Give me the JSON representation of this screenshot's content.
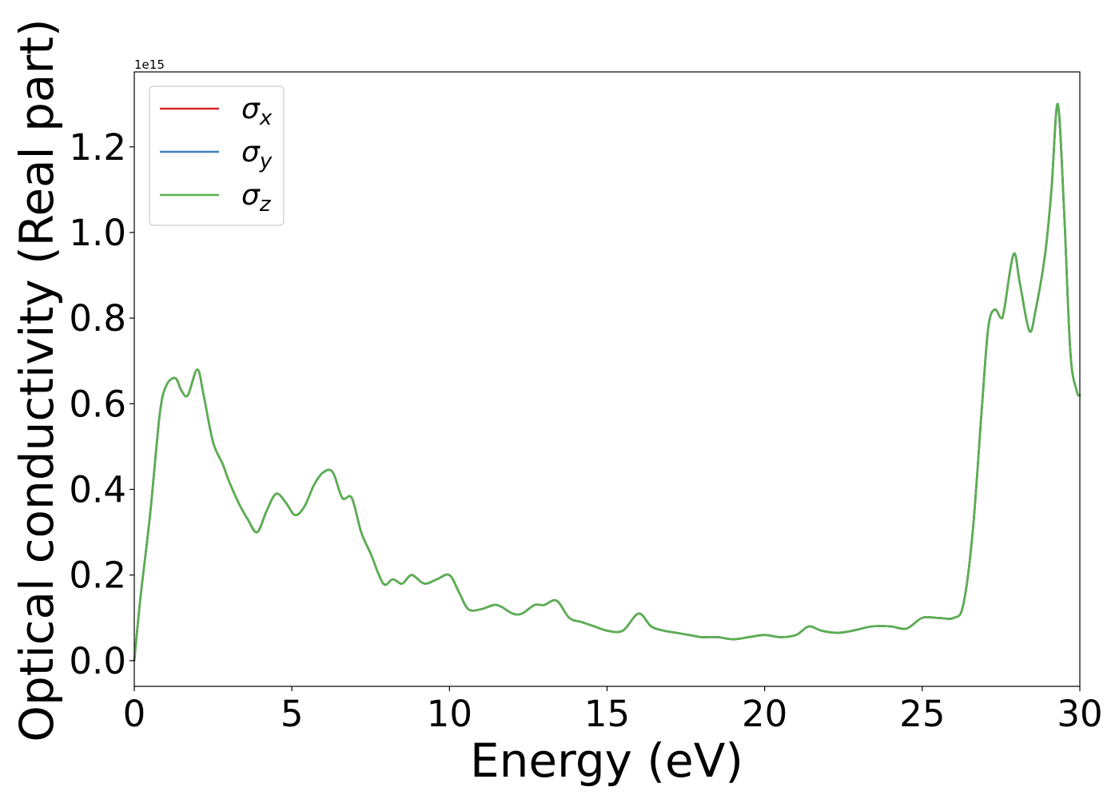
{
  "chart_data": {
    "type": "line",
    "xlabel": "Energy (eV)",
    "ylabel": "Optical conductivity (Real part)",
    "y_offset_label": "1e15",
    "y_scale_multiplier": 1000000000000000.0,
    "xlim": [
      0,
      30
    ],
    "ylim": [
      -0.06,
      1.375
    ],
    "x_ticks": [
      0,
      5,
      10,
      15,
      20,
      25,
      30
    ],
    "x_tick_labels": [
      "0",
      "5",
      "10",
      "15",
      "20",
      "25",
      "30"
    ],
    "y_ticks": [
      0.0,
      0.2,
      0.4,
      0.6,
      0.8,
      1.0,
      1.2
    ],
    "y_tick_labels": [
      "0.0",
      "0.2",
      "0.4",
      "0.6",
      "0.8",
      "1.0",
      "1.2"
    ],
    "grid": false,
    "legend_position": "top-left",
    "x": [
      0.0,
      0.2,
      0.5,
      0.8,
      1.0,
      1.3,
      1.5,
      1.7,
      2.0,
      2.2,
      2.5,
      2.8,
      3.0,
      3.3,
      3.6,
      3.9,
      4.2,
      4.5,
      4.8,
      5.1,
      5.4,
      5.7,
      6.0,
      6.3,
      6.6,
      6.9,
      7.2,
      7.5,
      7.9,
      8.2,
      8.5,
      8.8,
      9.2,
      9.6,
      10.0,
      10.3,
      10.6,
      11.0,
      11.5,
      12.0,
      12.3,
      12.7,
      13.0,
      13.4,
      13.8,
      14.2,
      14.6,
      15.0,
      15.5,
      16.0,
      16.4,
      16.8,
      17.2,
      17.6,
      18.0,
      18.5,
      19.0,
      19.5,
      20.0,
      20.5,
      21.0,
      21.4,
      21.8,
      22.3,
      22.8,
      23.4,
      24.0,
      24.5,
      25.0,
      25.5,
      26.0,
      26.3,
      26.6,
      26.9,
      27.1,
      27.3,
      27.5,
      27.6,
      27.9,
      28.1,
      28.4,
      28.6,
      28.9,
      29.1,
      29.3,
      29.5,
      29.7,
      29.9,
      30.0
    ],
    "series": [
      {
        "name": "σx",
        "color": "#d62728",
        "values": [
          0.0,
          0.15,
          0.34,
          0.57,
          0.64,
          0.66,
          0.63,
          0.62,
          0.68,
          0.62,
          0.51,
          0.46,
          0.42,
          0.37,
          0.33,
          0.3,
          0.35,
          0.39,
          0.37,
          0.34,
          0.36,
          0.41,
          0.44,
          0.44,
          0.38,
          0.38,
          0.3,
          0.25,
          0.18,
          0.19,
          0.18,
          0.2,
          0.18,
          0.19,
          0.2,
          0.16,
          0.12,
          0.12,
          0.13,
          0.11,
          0.11,
          0.13,
          0.13,
          0.14,
          0.1,
          0.09,
          0.08,
          0.07,
          0.07,
          0.11,
          0.08,
          0.07,
          0.065,
          0.06,
          0.055,
          0.055,
          0.05,
          0.055,
          0.06,
          0.055,
          0.06,
          0.08,
          0.07,
          0.065,
          0.07,
          0.08,
          0.08,
          0.075,
          0.1,
          0.1,
          0.1,
          0.13,
          0.3,
          0.6,
          0.78,
          0.82,
          0.8,
          0.82,
          0.95,
          0.88,
          0.77,
          0.82,
          0.95,
          1.1,
          1.3,
          1.05,
          0.72,
          0.63,
          0.62
        ]
      },
      {
        "name": "σy",
        "color": "#3a7fb8",
        "values": [
          0.0,
          0.15,
          0.34,
          0.57,
          0.64,
          0.66,
          0.63,
          0.62,
          0.68,
          0.62,
          0.51,
          0.46,
          0.42,
          0.37,
          0.33,
          0.3,
          0.35,
          0.39,
          0.37,
          0.34,
          0.36,
          0.41,
          0.44,
          0.44,
          0.38,
          0.38,
          0.3,
          0.25,
          0.18,
          0.19,
          0.18,
          0.2,
          0.18,
          0.19,
          0.2,
          0.16,
          0.12,
          0.12,
          0.13,
          0.11,
          0.11,
          0.13,
          0.13,
          0.14,
          0.1,
          0.09,
          0.08,
          0.07,
          0.07,
          0.11,
          0.08,
          0.07,
          0.065,
          0.06,
          0.055,
          0.055,
          0.05,
          0.055,
          0.06,
          0.055,
          0.06,
          0.08,
          0.07,
          0.065,
          0.07,
          0.08,
          0.08,
          0.075,
          0.1,
          0.1,
          0.1,
          0.13,
          0.3,
          0.6,
          0.78,
          0.82,
          0.8,
          0.82,
          0.95,
          0.88,
          0.77,
          0.82,
          0.95,
          1.1,
          1.3,
          1.05,
          0.72,
          0.63,
          0.62
        ]
      },
      {
        "name": "σz",
        "color": "#5ab04f",
        "values": [
          0.0,
          0.15,
          0.34,
          0.57,
          0.64,
          0.66,
          0.63,
          0.62,
          0.68,
          0.62,
          0.51,
          0.46,
          0.42,
          0.37,
          0.33,
          0.3,
          0.35,
          0.39,
          0.37,
          0.34,
          0.36,
          0.41,
          0.44,
          0.44,
          0.38,
          0.38,
          0.3,
          0.25,
          0.18,
          0.19,
          0.18,
          0.2,
          0.18,
          0.19,
          0.2,
          0.16,
          0.12,
          0.12,
          0.13,
          0.11,
          0.11,
          0.13,
          0.13,
          0.14,
          0.1,
          0.09,
          0.08,
          0.07,
          0.07,
          0.11,
          0.08,
          0.07,
          0.065,
          0.06,
          0.055,
          0.055,
          0.05,
          0.055,
          0.06,
          0.055,
          0.06,
          0.08,
          0.07,
          0.065,
          0.07,
          0.08,
          0.08,
          0.075,
          0.1,
          0.1,
          0.1,
          0.13,
          0.3,
          0.6,
          0.78,
          0.82,
          0.8,
          0.82,
          0.95,
          0.88,
          0.77,
          0.82,
          0.95,
          1.1,
          1.3,
          1.05,
          0.72,
          0.63,
          0.62
        ]
      }
    ],
    "legend": [
      {
        "symbol": "σ",
        "subscript": "x",
        "color": "#d62728"
      },
      {
        "symbol": "σ",
        "subscript": "y",
        "color": "#3a7fb8"
      },
      {
        "symbol": "σ",
        "subscript": "z",
        "color": "#5ab04f"
      }
    ]
  }
}
